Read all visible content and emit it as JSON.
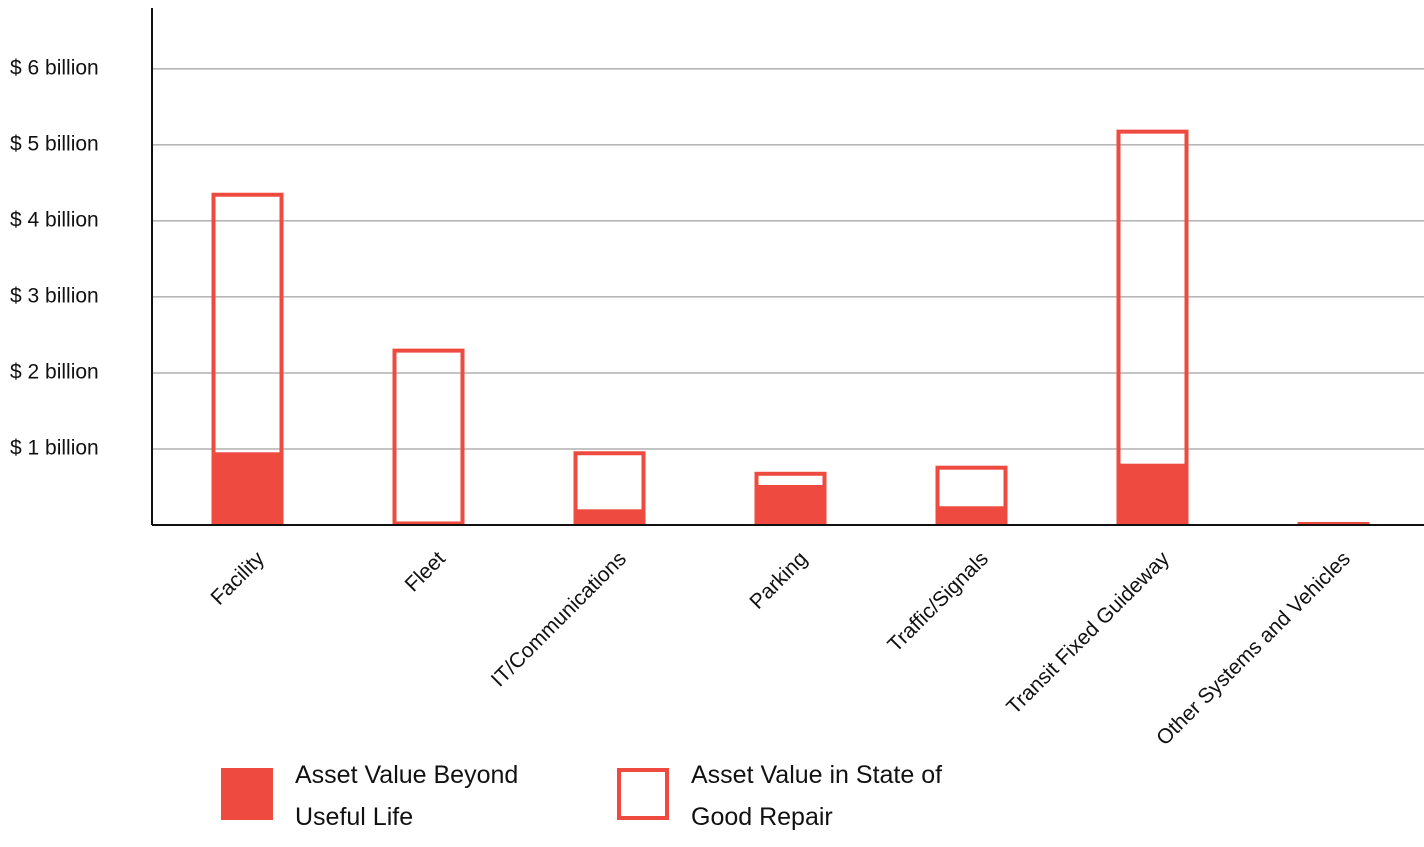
{
  "chart_data": {
    "type": "stacked-bar",
    "categories": [
      "Facility",
      "Fleet",
      "IT/Communications",
      "Parking",
      "Traffic/Signals",
      "Transit Fixed Guideway",
      "Other Systems and Vehicles"
    ],
    "series": [
      {
        "name": "Asset Value Beyond Useful Life",
        "color": "#ef4a3f",
        "style": "filled",
        "values": [
          0.93,
          0.02,
          0.18,
          0.5,
          0.22,
          0.78,
          0.04
        ]
      },
      {
        "name": "Asset Value in State of Good Repair",
        "color": "#ef4a3f",
        "style": "outline",
        "values": [
          3.44,
          2.3,
          0.79,
          0.2,
          0.56,
          4.42,
          0
        ]
      }
    ],
    "ylim": [
      0,
      6.8
    ],
    "yticks": [
      {
        "value": 1,
        "label": "$ 1 billion"
      },
      {
        "value": 2,
        "label": "$ 2 billion"
      },
      {
        "value": 3,
        "label": "$ 3 billion"
      },
      {
        "value": 4,
        "label": "$ 4 billion"
      },
      {
        "value": 5,
        "label": "$ 5 billion"
      },
      {
        "value": 6,
        "label": "$ 6 billion"
      }
    ],
    "grid": true
  }
}
